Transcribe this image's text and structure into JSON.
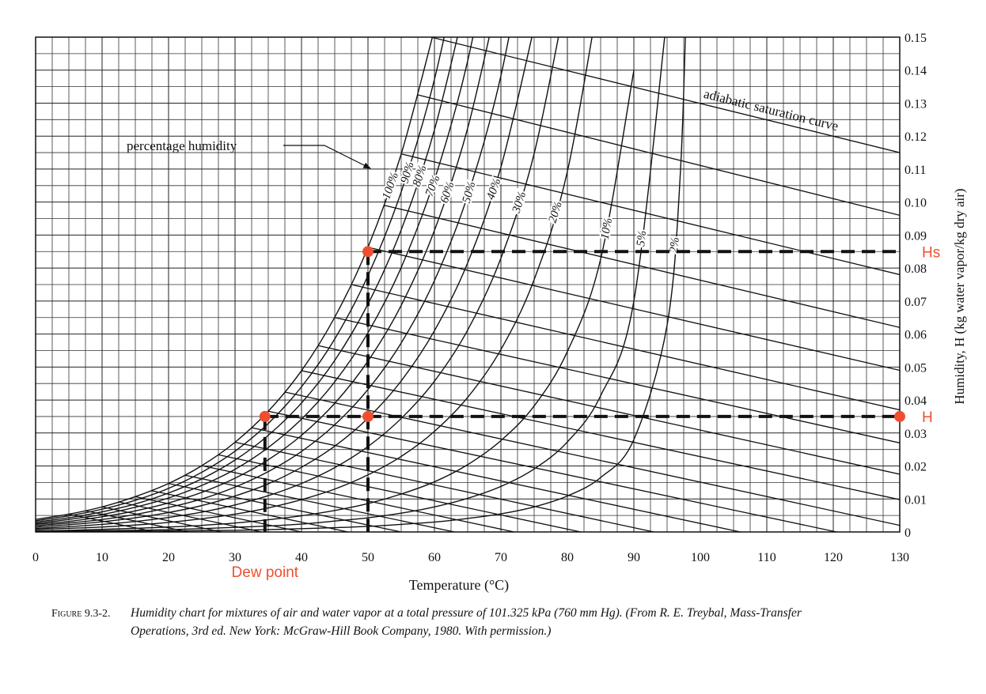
{
  "chart_data": {
    "type": "line",
    "xlabel": "Temperature (°C)",
    "ylabel": "Humidity, H (kg water vapor/kg dry air)",
    "xlim": [
      0,
      130
    ],
    "ylim": [
      0,
      0.15
    ],
    "xticks": [
      0,
      10,
      20,
      30,
      40,
      50,
      60,
      70,
      80,
      90,
      100,
      110,
      120,
      130
    ],
    "yticks": [
      0,
      0.01,
      0.02,
      0.03,
      0.04,
      0.05,
      0.06,
      0.07,
      0.08,
      0.09,
      {
        "value": 0.1,
        "label": "0.10"
      },
      0.11,
      0.12,
      0.13,
      0.14,
      0.15
    ],
    "grid": true,
    "grid_subdivisions": {
      "x": 4,
      "y": 2
    },
    "curve_color": "#111111",
    "series_group_label": "percentage humidity",
    "series": [
      {
        "name": "100%",
        "x": [
          0,
          5,
          10,
          15,
          20,
          25,
          30,
          35,
          40,
          45,
          50,
          55,
          60
        ],
        "values": [
          0.0038,
          0.0054,
          0.0076,
          0.0107,
          0.0147,
          0.0201,
          0.0272,
          0.0366,
          0.0489,
          0.0651,
          0.0863,
          0.1146,
          0.1524
        ]
      },
      {
        "name": "90%",
        "x": [
          0,
          5,
          10,
          15,
          20,
          25,
          30,
          35,
          40,
          45,
          50,
          55,
          60,
          65
        ],
        "values": [
          0.0034,
          0.0049,
          0.0069,
          0.0096,
          0.0132,
          0.0181,
          0.0245,
          0.0329,
          0.044,
          0.0585,
          0.0777,
          0.1031,
          0.1372,
          0.1837
        ]
      },
      {
        "name": "80%",
        "x": [
          0,
          5,
          10,
          15,
          20,
          25,
          30,
          35,
          40,
          45,
          50,
          55,
          60,
          65
        ],
        "values": [
          0.003,
          0.0043,
          0.0061,
          0.0085,
          0.0118,
          0.0161,
          0.0218,
          0.0293,
          0.0391,
          0.052,
          0.0691,
          0.0916,
          0.1219,
          0.1632
        ]
      },
      {
        "name": "70%",
        "x": [
          0,
          5,
          10,
          15,
          20,
          25,
          30,
          35,
          40,
          45,
          50,
          55,
          60,
          65,
          70
        ],
        "values": [
          0.0026,
          0.0038,
          0.0053,
          0.0075,
          0.0103,
          0.0141,
          0.019,
          0.0256,
          0.0342,
          0.0455,
          0.0604,
          0.0802,
          0.1067,
          0.1428,
          0.1936
        ]
      },
      {
        "name": "60%",
        "x": [
          0,
          5,
          10,
          15,
          20,
          25,
          30,
          35,
          40,
          45,
          50,
          55,
          60,
          65,
          70
        ],
        "values": [
          0.0023,
          0.0032,
          0.0046,
          0.0064,
          0.0088,
          0.012,
          0.0163,
          0.0219,
          0.0293,
          0.039,
          0.0518,
          0.0687,
          0.0914,
          0.1224,
          0.166
        ]
      },
      {
        "name": "50%",
        "x": [
          0,
          5,
          10,
          15,
          20,
          25,
          30,
          35,
          40,
          45,
          50,
          55,
          60,
          65,
          70,
          75
        ],
        "values": [
          0.0019,
          0.0027,
          0.0038,
          0.0053,
          0.0074,
          0.01,
          0.0136,
          0.0183,
          0.0244,
          0.0325,
          0.0432,
          0.0573,
          0.0762,
          0.102,
          0.1383,
          0.1912
        ]
      },
      {
        "name": "40%",
        "x": [
          0,
          5,
          10,
          15,
          20,
          25,
          30,
          35,
          40,
          45,
          50,
          55,
          60,
          65,
          70,
          75
        ],
        "values": [
          0.0015,
          0.0022,
          0.0031,
          0.0043,
          0.0059,
          0.008,
          0.0109,
          0.0146,
          0.0196,
          0.026,
          0.0345,
          0.0458,
          0.061,
          0.0816,
          0.1106,
          0.153
        ]
      },
      {
        "name": "30%",
        "x": [
          0,
          5,
          10,
          15,
          20,
          25,
          30,
          35,
          40,
          45,
          50,
          55,
          60,
          65,
          70,
          75,
          80
        ],
        "values": [
          0.0011,
          0.0016,
          0.0023,
          0.0032,
          0.0044,
          0.006,
          0.0082,
          0.011,
          0.0147,
          0.0195,
          0.0259,
          0.0344,
          0.0457,
          0.0612,
          0.083,
          0.1147,
          0.164
        ]
      },
      {
        "name": "20%",
        "x": [
          0,
          5,
          10,
          15,
          20,
          25,
          30,
          35,
          40,
          45,
          50,
          55,
          60,
          65,
          70,
          75,
          80,
          85
        ],
        "values": [
          0.0008,
          0.0011,
          0.0015,
          0.0021,
          0.0029,
          0.004,
          0.0054,
          0.0073,
          0.0098,
          0.013,
          0.0173,
          0.0229,
          0.0305,
          0.0408,
          0.0553,
          0.0765,
          0.1093,
          0.1654
        ]
      },
      {
        "name": "10%",
        "x": [
          0,
          5,
          10,
          15,
          20,
          25,
          30,
          35,
          40,
          45,
          50,
          55,
          60,
          65,
          70,
          75,
          80,
          85,
          90
        ],
        "values": [
          0.0004,
          0.0005,
          0.0008,
          0.0011,
          0.0015,
          0.002,
          0.0027,
          0.0037,
          0.0049,
          0.0065,
          0.0086,
          0.0115,
          0.0152,
          0.0204,
          0.0277,
          0.0382,
          0.0547,
          0.0827,
          0.1399
        ]
      },
      {
        "name": "5%",
        "x": [
          0,
          5,
          10,
          15,
          20,
          25,
          30,
          35,
          40,
          45,
          50,
          55,
          60,
          65,
          70,
          75,
          80,
          85,
          90,
          95
        ],
        "values": [
          0.0002,
          0.0003,
          0.0004,
          0.0005,
          0.0007,
          0.001,
          0.0014,
          0.0018,
          0.0024,
          0.0033,
          0.0043,
          0.0057,
          0.0076,
          0.0102,
          0.0138,
          0.0191,
          0.0273,
          0.0413,
          0.07,
          0.1568
        ]
      },
      {
        "name": "2%",
        "x": [
          0,
          5,
          10,
          15,
          20,
          25,
          30,
          35,
          40,
          45,
          50,
          55,
          60,
          65,
          70,
          75,
          80,
          85,
          90,
          95,
          97,
          98
        ],
        "values": [
          0.0001,
          0.0001,
          0.0002,
          0.0002,
          0.0003,
          0.0004,
          0.0005,
          0.0007,
          0.001,
          0.0013,
          0.0017,
          0.0023,
          0.003,
          0.0041,
          0.0055,
          0.0076,
          0.0109,
          0.0165,
          0.028,
          0.0627,
          0.109,
          0.168
        ]
      }
    ],
    "adiabatic_label": "adiabatic saturation curve",
    "adiabatic_lines": [
      {
        "x": [
          59.5,
          130
        ],
        "values": [
          0.15,
          0.115
        ]
      },
      {
        "x": [
          57.5,
          130
        ],
        "values": [
          0.1325,
          0.096
        ]
      },
      {
        "x": [
          55,
          130
        ],
        "values": [
          0.1146,
          0.078
        ]
      },
      {
        "x": [
          52.5,
          130
        ],
        "values": [
          0.099,
          0.062
        ]
      },
      {
        "x": [
          50,
          130
        ],
        "values": [
          0.0863,
          0.049
        ]
      },
      {
        "x": [
          47.5,
          130
        ],
        "values": [
          0.075,
          0.037
        ]
      },
      {
        "x": [
          45,
          130
        ],
        "values": [
          0.065,
          0.027
        ]
      },
      {
        "x": [
          42.5,
          130
        ],
        "values": [
          0.0565,
          0.0175
        ]
      },
      {
        "x": [
          40,
          130
        ],
        "values": [
          0.0489,
          0.0098
        ]
      },
      {
        "x": [
          37.5,
          130
        ],
        "values": [
          0.0424,
          0.002
        ]
      },
      {
        "x": [
          35,
          120.5
        ],
        "values": [
          0.0366,
          0
        ]
      },
      {
        "x": [
          32.5,
          106
        ],
        "values": [
          0.0316,
          0
        ]
      },
      {
        "x": [
          30,
          93
        ],
        "values": [
          0.0272,
          0
        ]
      },
      {
        "x": [
          27.5,
          82
        ],
        "values": [
          0.0234,
          0
        ]
      },
      {
        "x": [
          25,
          72
        ],
        "values": [
          0.0201,
          0
        ]
      },
      {
        "x": [
          22.5,
          63
        ],
        "values": [
          0.0172,
          0
        ]
      },
      {
        "x": [
          20,
          55
        ],
        "values": [
          0.0147,
          0
        ]
      },
      {
        "x": [
          17.5,
          47
        ],
        "values": [
          0.0125,
          0
        ]
      },
      {
        "x": [
          15,
          40
        ],
        "values": [
          0.0107,
          0
        ]
      },
      {
        "x": [
          12.5,
          34
        ],
        "values": [
          0.0091,
          0
        ]
      },
      {
        "x": [
          10,
          28
        ],
        "values": [
          0.0076,
          0
        ]
      },
      {
        "x": [
          7.5,
          23
        ],
        "values": [
          0.0064,
          0
        ]
      },
      {
        "x": [
          5,
          18
        ],
        "values": [
          0.0054,
          0
        ]
      }
    ],
    "dashed_lines": [
      {
        "x": [
          34.5,
          130
        ],
        "values": [
          0.035,
          0.035
        ]
      },
      {
        "x": [
          34.5,
          34.5
        ],
        "values": [
          0.035,
          0
        ]
      },
      {
        "x": [
          50,
          50
        ],
        "values": [
          0.085,
          0
        ]
      },
      {
        "x": [
          50,
          130
        ],
        "values": [
          0.085,
          0.085
        ]
      }
    ],
    "markers": {
      "color": "#f04e30",
      "x": [
        34.5,
        50,
        50,
        130
      ],
      "values": [
        0.035,
        0.035,
        0.085,
        0.035
      ]
    },
    "annotations": [
      {
        "text": "Hs",
        "x": 130,
        "y": 0.085
      },
      {
        "text": "H",
        "x": 130,
        "y": 0.035
      },
      {
        "text": "Dew point",
        "x": 34.5,
        "y": 0
      }
    ]
  },
  "caption_number": "Figure 9.3-2.",
  "caption": [
    "Humidity chart for mixtures of air and water vapor at a total pressure of 101.325 kPa (760 mm Hg). (From R. E. Treybal, Mass-Transfer",
    "Operations, 3rd ed. New York: McGraw-Hill Book Company, 1980. With permission.)"
  ]
}
